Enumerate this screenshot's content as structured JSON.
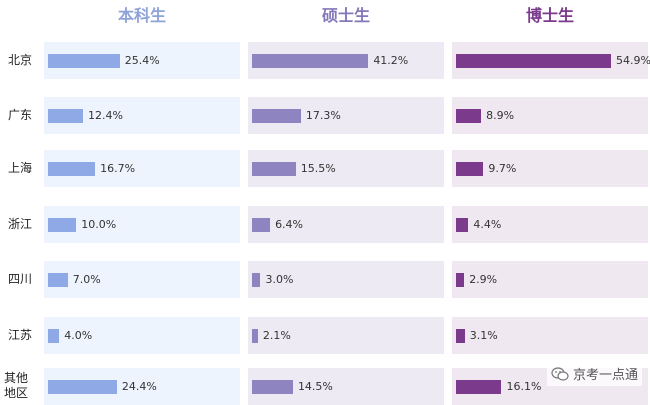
{
  "chart_data": {
    "type": "bar",
    "categories": [
      "北京",
      "广东",
      "上海",
      "浙江",
      "四川",
      "江苏",
      "其他地区"
    ],
    "series": [
      {
        "name": "本科生",
        "color": "#8fa8e6",
        "head_color": "#8fa3d9",
        "panel_color": "#edf4fd",
        "values": [
          25.4,
          12.4,
          16.7,
          10.0,
          7.0,
          4.0,
          24.4
        ]
      },
      {
        "name": "硕士生",
        "color": "#8d84c0",
        "head_color": "#8578ba",
        "panel_color": "#edeaf3",
        "values": [
          41.2,
          17.3,
          15.5,
          6.4,
          3.0,
          2.1,
          14.5
        ]
      },
      {
        "name": "博士生",
        "color": "#7b3a8c",
        "head_color": "#7b3a8c",
        "panel_color": "#f0e8f1",
        "values": [
          54.9,
          8.9,
          9.7,
          4.4,
          2.9,
          3.1,
          16.1
        ]
      }
    ],
    "value_suffix": "%",
    "xlim": [
      0,
      100
    ]
  },
  "watermark": {
    "text": "京考一点通",
    "icon": "chat-bubble-icon"
  }
}
